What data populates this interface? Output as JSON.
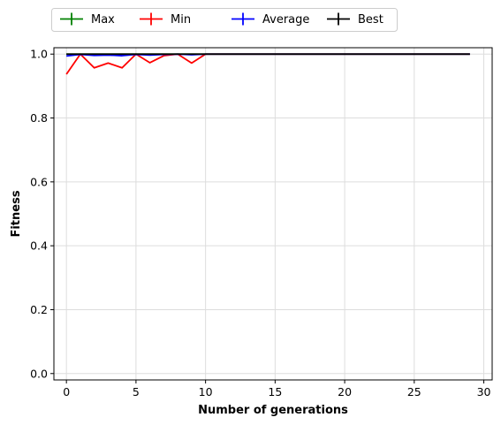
{
  "chart_data": {
    "type": "line",
    "xlabel": "Number of generations",
    "ylabel": "Fitness",
    "xlim": [
      -0.9,
      30.6
    ],
    "ylim": [
      -0.02,
      1.02
    ],
    "x_ticks": [
      "0",
      "5",
      "10",
      "15",
      "20",
      "25",
      "30"
    ],
    "y_ticks": [
      "0.0",
      "0.2",
      "0.4",
      "0.6",
      "0.8",
      "1.0"
    ],
    "grid": true,
    "legend_position": "top-left, above plot",
    "x": [
      0,
      1,
      2,
      3,
      4,
      5,
      6,
      7,
      8,
      9,
      10,
      11,
      12,
      13,
      14,
      15,
      16,
      17,
      18,
      19,
      20,
      21,
      22,
      23,
      24,
      25,
      26,
      27,
      28,
      29
    ],
    "series": [
      {
        "name": "Max",
        "color": "#008000",
        "values": [
          1,
          1,
          1,
          1,
          1,
          1,
          1,
          1,
          1,
          1,
          1,
          1,
          1,
          1,
          1,
          1,
          1,
          1,
          1,
          1,
          1,
          1,
          1,
          1,
          1,
          1,
          1,
          1,
          1,
          1
        ]
      },
      {
        "name": "Min",
        "color": "#ff0000",
        "values": [
          0.937,
          1.0,
          0.957,
          0.972,
          0.957,
          1.0,
          0.973,
          0.995,
          1.0,
          0.972,
          1.0,
          1,
          1,
          1,
          1,
          1,
          1,
          1,
          1,
          1,
          1,
          1,
          1,
          1,
          1,
          1,
          1,
          1,
          1,
          1
        ]
      },
      {
        "name": "Average",
        "color": "#0000ff",
        "values": [
          0.994,
          0.999,
          0.996,
          0.997,
          0.995,
          0.999,
          0.997,
          0.999,
          1.0,
          0.998,
          1.0,
          1,
          1,
          1,
          1,
          1,
          1,
          1,
          1,
          1,
          1,
          1,
          1,
          1,
          1,
          1,
          1,
          1,
          1,
          1
        ]
      },
      {
        "name": "Best",
        "color": "#000000",
        "values": [
          1,
          1,
          1,
          1,
          1,
          1,
          1,
          1,
          1,
          1,
          1,
          1,
          1,
          1,
          1,
          1,
          1,
          1,
          1,
          1,
          1,
          1,
          1,
          1,
          1,
          1,
          1,
          1,
          1,
          1
        ]
      }
    ]
  }
}
